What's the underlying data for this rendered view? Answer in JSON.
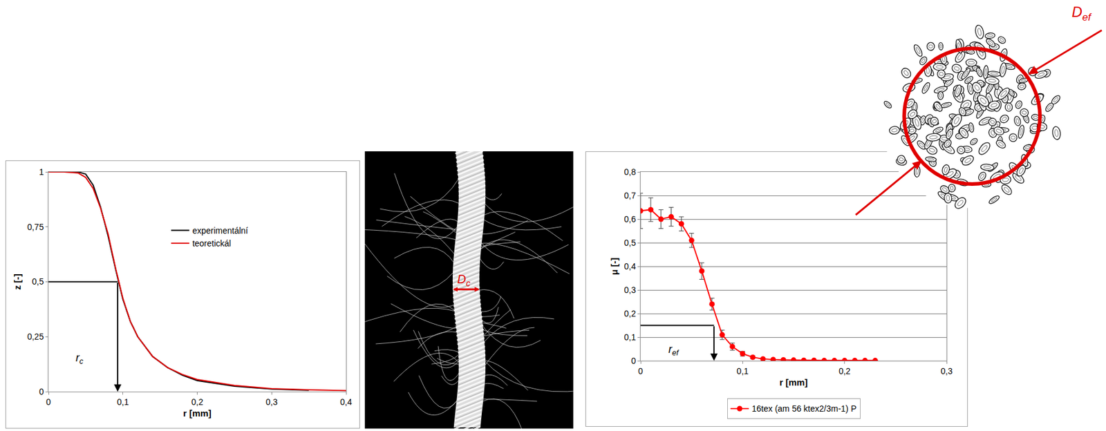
{
  "chart_data": [
    {
      "type": "line",
      "x_label": "r [mm]",
      "y_label": "z [-]",
      "xlim": [
        0,
        0.4
      ],
      "xticks": [
        0,
        {
          "value": 0.1,
          "label": "0,1"
        },
        {
          "value": 0.2,
          "label": "0,2"
        },
        {
          "value": 0.3,
          "label": "0,3"
        },
        {
          "value": 0.4,
          "label": "0,4"
        }
      ],
      "ylim": [
        0,
        1
      ],
      "yticks": [
        0,
        {
          "value": 0.25,
          "label": "0,25"
        },
        {
          "value": 0.5,
          "label": "0,5"
        },
        {
          "value": 0.75,
          "label": "0,75"
        },
        1
      ],
      "grid": false,
      "legend": "center",
      "series": [
        {
          "name": "experimentální",
          "color": "#000000",
          "line_style": "solid",
          "x": [
            0.02,
            0.03,
            0.04,
            0.05,
            0.06,
            0.07,
            0.08,
            0.09,
            0.1,
            0.11,
            0.12,
            0.14,
            0.16,
            0.18,
            0.2,
            0.25,
            0.3,
            0.35
          ],
          "values": [
            1,
            1,
            1,
            0.99,
            0.94,
            0.84,
            0.71,
            0.56,
            0.42,
            0.32,
            0.25,
            0.16,
            0.11,
            0.075,
            0.05,
            0.025,
            0.012,
            0.006
          ]
        },
        {
          "name": "teoretickál",
          "color": "#e00000",
          "line_style": "solid",
          "x": [
            0,
            0.02,
            0.04,
            0.05,
            0.06,
            0.07,
            0.08,
            0.09,
            0.1,
            0.11,
            0.12,
            0.14,
            0.16,
            0.18,
            0.2,
            0.25,
            0.3,
            0.35,
            0.4
          ],
          "values": [
            1,
            1,
            0.995,
            0.975,
            0.925,
            0.835,
            0.72,
            0.565,
            0.425,
            0.32,
            0.25,
            0.16,
            0.11,
            0.078,
            0.055,
            0.028,
            0.014,
            0.008,
            0.005
          ]
        }
      ],
      "guide": {
        "x": 0.093,
        "y": 0.5,
        "text": "r",
        "subscript": "c"
      }
    },
    {
      "type": "line",
      "x_label": "r [mm]",
      "y_label": "μ [-]",
      "xlim": [
        0,
        0.3
      ],
      "xticks": [
        0,
        {
          "value": 0.1,
          "label": "0,1"
        },
        {
          "value": 0.2,
          "label": "0,2"
        },
        {
          "value": 0.3,
          "label": "0,3"
        }
      ],
      "ylim": [
        0,
        0.8
      ],
      "yticks": [
        0,
        {
          "value": 0.1,
          "label": "0,1"
        },
        {
          "value": 0.2,
          "label": "0,2"
        },
        {
          "value": 0.3,
          "label": "0,3"
        },
        {
          "value": 0.4,
          "label": "0,4"
        },
        {
          "value": 0.5,
          "label": "0,5"
        },
        {
          "value": 0.6,
          "label": "0,6"
        },
        {
          "value": 0.7,
          "label": "0,7"
        },
        {
          "value": 0.8,
          "label": "0,8"
        }
      ],
      "grid": true,
      "legend": "bottom",
      "x": [
        0,
        0.01,
        0.02,
        0.03,
        0.04,
        0.05,
        0.06,
        0.07,
        0.08,
        0.09,
        0.1,
        0.11,
        0.12,
        0.13,
        0.14,
        0.15,
        0.16,
        0.17,
        0.18,
        0.19,
        0.2,
        0.21,
        0.22,
        0.23
      ],
      "series": [
        {
          "name": "16tex (am 56 ktex2/3m-1) P",
          "color": "#ff0000",
          "marker": "circle",
          "line_style": "solid",
          "values": [
            0.635,
            0.64,
            0.6,
            0.61,
            0.58,
            0.51,
            0.38,
            0.24,
            0.11,
            0.06,
            0.03,
            0.015,
            0.008,
            0.005,
            0.004,
            0.003,
            0.002,
            0.002,
            0.001,
            0.001,
            0.001,
            0.001,
            0.001,
            0.001
          ],
          "errors": [
            0.075,
            0.05,
            0.04,
            0.04,
            0.03,
            0.03,
            0.035,
            0.025,
            0.02,
            0.015,
            0.01,
            0.006,
            0.004,
            0.003,
            0.002,
            0.002,
            0.002,
            0.001,
            0.001,
            0.001,
            0.001,
            0.001,
            0.001,
            0.001
          ]
        }
      ],
      "guide": {
        "x": 0.072,
        "y": 0.15,
        "text": "r",
        "subscript": "ef"
      }
    }
  ],
  "figures": {
    "yarn_photo": {
      "label": {
        "text": "D",
        "subscript": "c"
      }
    },
    "cross_section": {
      "label": {
        "text": "D",
        "subscript": "ef"
      }
    }
  }
}
